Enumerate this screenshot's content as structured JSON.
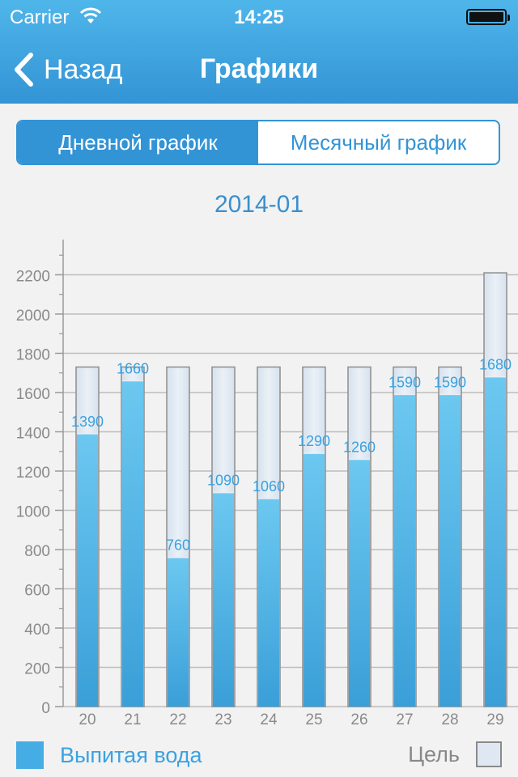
{
  "status": {
    "carrier": "Carrier",
    "time": "14:25"
  },
  "nav": {
    "back_label": "Назад",
    "title": "Графики"
  },
  "tabs": [
    {
      "label": "Дневной график",
      "active": true
    },
    {
      "label": "Месячный график",
      "active": false
    }
  ],
  "chart_title": "2014-01",
  "legend": {
    "drunk": "Выпитая вода",
    "goal": "Цель"
  },
  "colors": {
    "accent": "#3394d5",
    "bar": "#46ace4",
    "goal": "#dfe8f2",
    "label": "#3aa2e0"
  },
  "chart_data": {
    "type": "bar",
    "title": "2014-01",
    "categories": [
      "20",
      "21",
      "22",
      "23",
      "24",
      "25",
      "26",
      "27",
      "28",
      "29"
    ],
    "series": [
      {
        "name": "Выпитая вода",
        "values": [
          1390,
          1660,
          760,
          1090,
          1060,
          1290,
          1260,
          1590,
          1590,
          1680
        ]
      },
      {
        "name": "Цель",
        "values": [
          1730,
          1730,
          1730,
          1730,
          1730,
          1730,
          1730,
          1730,
          1730,
          2210
        ]
      }
    ],
    "yticks": [
      0,
      200,
      400,
      600,
      800,
      1000,
      1200,
      1400,
      1600,
      1800,
      2000,
      2200
    ],
    "ylim": [
      0,
      2350
    ],
    "grid": true,
    "legend": "bottom"
  }
}
